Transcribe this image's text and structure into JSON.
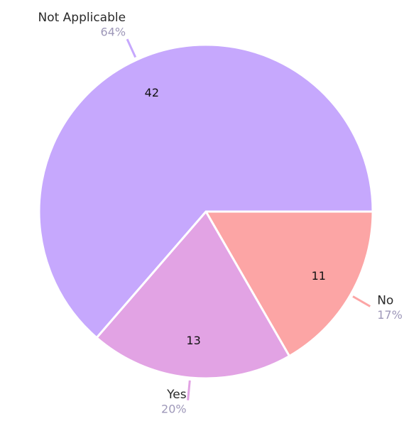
{
  "chart_data": {
    "type": "pie",
    "categories": [
      "No",
      "Yes",
      "Not Applicable"
    ],
    "values": [
      11,
      13,
      42
    ],
    "percent_labels": [
      "17%",
      "20%",
      "64%"
    ],
    "colors": [
      "#fca5a5",
      "#e2a3e4",
      "#c6a8fd"
    ]
  }
}
